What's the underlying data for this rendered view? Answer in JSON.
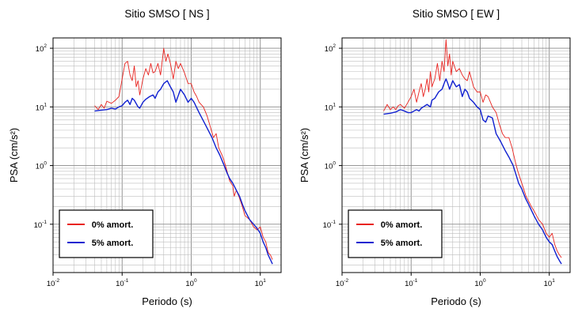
{
  "chart_data": [
    {
      "type": "line",
      "title": "Sitio SMSO [ NS ]",
      "xlabel": "Periodo (s)",
      "ylabel": "PSA (cm/s²)",
      "xscale": "log",
      "yscale": "log",
      "xlim": [
        0.01,
        20
      ],
      "ylim": [
        0.015,
        150
      ],
      "grid": true,
      "legend_position": "bottom-left",
      "x_ticks": [
        {
          "base": "10",
          "exp": "-2",
          "value": 0.01
        },
        {
          "base": "10",
          "exp": "-1",
          "value": 0.1
        },
        {
          "base": "10",
          "exp": "0",
          "value": 1
        },
        {
          "base": "10",
          "exp": "1",
          "value": 10
        }
      ],
      "y_ticks": [
        {
          "base": "10",
          "exp": "-1",
          "value": 0.1
        },
        {
          "base": "10",
          "exp": "0",
          "value": 1
        },
        {
          "base": "10",
          "exp": "1",
          "value": 10
        },
        {
          "base": "10",
          "exp": "2",
          "value": 100
        }
      ],
      "series": [
        {
          "name": "0% amort.",
          "color": "#e8231f",
          "points": [
            [
              0.04,
              10.5
            ],
            [
              0.045,
              9.0
            ],
            [
              0.05,
              11.0
            ],
            [
              0.055,
              9.5
            ],
            [
              0.06,
              12.5
            ],
            [
              0.07,
              11.5
            ],
            [
              0.08,
              13.0
            ],
            [
              0.09,
              15.0
            ],
            [
              0.1,
              30.0
            ],
            [
              0.11,
              55.0
            ],
            [
              0.12,
              60.0
            ],
            [
              0.13,
              35.0
            ],
            [
              0.14,
              28.0
            ],
            [
              0.15,
              50.0
            ],
            [
              0.16,
              22.0
            ],
            [
              0.17,
              28.0
            ],
            [
              0.18,
              16.0
            ],
            [
              0.2,
              30.0
            ],
            [
              0.22,
              45.0
            ],
            [
              0.24,
              35.0
            ],
            [
              0.26,
              55.0
            ],
            [
              0.28,
              38.0
            ],
            [
              0.3,
              40.0
            ],
            [
              0.33,
              55.0
            ],
            [
              0.36,
              35.0
            ],
            [
              0.4,
              100.0
            ],
            [
              0.43,
              60.0
            ],
            [
              0.46,
              80.0
            ],
            [
              0.5,
              55.0
            ],
            [
              0.55,
              30.0
            ],
            [
              0.6,
              60.0
            ],
            [
              0.65,
              45.0
            ],
            [
              0.7,
              55.0
            ],
            [
              0.8,
              38.0
            ],
            [
              0.9,
              25.0
            ],
            [
              1.0,
              25.0
            ],
            [
              1.1,
              18.0
            ],
            [
              1.2,
              15.0
            ],
            [
              1.3,
              12.0
            ],
            [
              1.5,
              10.0
            ],
            [
              1.7,
              7.0
            ],
            [
              1.9,
              4.5
            ],
            [
              2.1,
              3.0
            ],
            [
              2.3,
              3.5
            ],
            [
              2.5,
              2.0
            ],
            [
              2.8,
              1.5
            ],
            [
              3.0,
              1.2
            ],
            [
              3.3,
              0.8
            ],
            [
              3.6,
              0.55
            ],
            [
              4.0,
              0.45
            ],
            [
              4.2,
              0.3
            ],
            [
              4.5,
              0.38
            ],
            [
              5.0,
              0.28
            ],
            [
              5.5,
              0.2
            ],
            [
              6.0,
              0.14
            ],
            [
              7.0,
              0.12
            ],
            [
              8.0,
              0.09
            ],
            [
              9.0,
              0.08
            ],
            [
              10.0,
              0.09
            ],
            [
              11.0,
              0.06
            ],
            [
              12.0,
              0.05
            ],
            [
              13.0,
              0.033
            ],
            [
              14.0,
              0.03
            ],
            [
              15.0,
              0.025
            ]
          ]
        },
        {
          "name": "5% amort.",
          "color": "#1020d0",
          "points": [
            [
              0.04,
              8.5
            ],
            [
              0.05,
              8.8
            ],
            [
              0.06,
              9.0
            ],
            [
              0.07,
              9.5
            ],
            [
              0.08,
              9.2
            ],
            [
              0.09,
              10.0
            ],
            [
              0.1,
              10.5
            ],
            [
              0.11,
              12.0
            ],
            [
              0.12,
              13.0
            ],
            [
              0.13,
              11.0
            ],
            [
              0.14,
              14.0
            ],
            [
              0.15,
              13.0
            ],
            [
              0.17,
              10.0
            ],
            [
              0.18,
              9.5
            ],
            [
              0.2,
              12.0
            ],
            [
              0.22,
              13.5
            ],
            [
              0.25,
              15.0
            ],
            [
              0.28,
              16.0
            ],
            [
              0.3,
              14.0
            ],
            [
              0.33,
              18.0
            ],
            [
              0.36,
              20.0
            ],
            [
              0.4,
              25.0
            ],
            [
              0.45,
              28.0
            ],
            [
              0.5,
              22.0
            ],
            [
              0.55,
              18.0
            ],
            [
              0.6,
              12.0
            ],
            [
              0.7,
              20.0
            ],
            [
              0.8,
              16.0
            ],
            [
              0.9,
              12.0
            ],
            [
              1.0,
              14.0
            ],
            [
              1.1,
              12.0
            ],
            [
              1.3,
              8.0
            ],
            [
              1.6,
              5.0
            ],
            [
              2.0,
              3.0
            ],
            [
              2.3,
              2.0
            ],
            [
              2.6,
              1.5
            ],
            [
              3.0,
              1.0
            ],
            [
              3.3,
              0.75
            ],
            [
              3.6,
              0.6
            ],
            [
              4.0,
              0.5
            ],
            [
              4.5,
              0.38
            ],
            [
              5.0,
              0.3
            ],
            [
              5.5,
              0.22
            ],
            [
              6.0,
              0.17
            ],
            [
              7.0,
              0.12
            ],
            [
              8.0,
              0.1
            ],
            [
              9.0,
              0.085
            ],
            [
              10.0,
              0.07
            ],
            [
              11.0,
              0.05
            ],
            [
              12.0,
              0.04
            ],
            [
              13.0,
              0.03
            ],
            [
              14.0,
              0.025
            ],
            [
              15.0,
              0.021
            ]
          ]
        }
      ]
    },
    {
      "type": "line",
      "title": "Sitio SMSO [ EW ]",
      "xlabel": "Periodo (s)",
      "ylabel": "PSA (cm/s²)",
      "xscale": "log",
      "yscale": "log",
      "xlim": [
        0.01,
        20
      ],
      "ylim": [
        0.015,
        150
      ],
      "grid": true,
      "legend_position": "bottom-left",
      "x_ticks": [
        {
          "base": "10",
          "exp": "-2",
          "value": 0.01
        },
        {
          "base": "10",
          "exp": "-1",
          "value": 0.1
        },
        {
          "base": "10",
          "exp": "0",
          "value": 1
        },
        {
          "base": "10",
          "exp": "1",
          "value": 10
        }
      ],
      "y_ticks": [
        {
          "base": "10",
          "exp": "-1",
          "value": 0.1
        },
        {
          "base": "10",
          "exp": "0",
          "value": 1
        },
        {
          "base": "10",
          "exp": "1",
          "value": 10
        },
        {
          "base": "10",
          "exp": "2",
          "value": 100
        }
      ],
      "series": [
        {
          "name": "0% amort.",
          "color": "#e8231f",
          "points": [
            [
              0.04,
              8.5
            ],
            [
              0.045,
              11.0
            ],
            [
              0.05,
              9.0
            ],
            [
              0.055,
              10.0
            ],
            [
              0.06,
              9.0
            ],
            [
              0.065,
              10.5
            ],
            [
              0.07,
              11.0
            ],
            [
              0.08,
              9.5
            ],
            [
              0.09,
              12.0
            ],
            [
              0.1,
              15.0
            ],
            [
              0.11,
              20.0
            ],
            [
              0.12,
              12.0
            ],
            [
              0.13,
              18.0
            ],
            [
              0.14,
              25.0
            ],
            [
              0.15,
              15.0
            ],
            [
              0.16,
              20.0
            ],
            [
              0.17,
              30.0
            ],
            [
              0.18,
              18.0
            ],
            [
              0.19,
              40.0
            ],
            [
              0.2,
              22.0
            ],
            [
              0.22,
              30.0
            ],
            [
              0.24,
              55.0
            ],
            [
              0.26,
              28.0
            ],
            [
              0.28,
              60.0
            ],
            [
              0.3,
              40.0
            ],
            [
              0.32,
              140.0
            ],
            [
              0.34,
              50.0
            ],
            [
              0.36,
              80.0
            ],
            [
              0.38,
              35.0
            ],
            [
              0.4,
              60.0
            ],
            [
              0.45,
              40.0
            ],
            [
              0.5,
              45.0
            ],
            [
              0.55,
              35.0
            ],
            [
              0.6,
              30.0
            ],
            [
              0.65,
              28.0
            ],
            [
              0.7,
              40.0
            ],
            [
              0.8,
              22.0
            ],
            [
              0.9,
              18.0
            ],
            [
              1.0,
              18.0
            ],
            [
              1.1,
              12.0
            ],
            [
              1.2,
              16.0
            ],
            [
              1.3,
              15.0
            ],
            [
              1.5,
              10.0
            ],
            [
              1.7,
              8.0
            ],
            [
              1.9,
              5.0
            ],
            [
              2.1,
              3.5
            ],
            [
              2.3,
              3.0
            ],
            [
              2.6,
              3.0
            ],
            [
              2.9,
              2.0
            ],
            [
              3.2,
              1.2
            ],
            [
              3.5,
              0.8
            ],
            [
              3.8,
              0.6
            ],
            [
              4.2,
              0.42
            ],
            [
              4.6,
              0.3
            ],
            [
              5.0,
              0.25
            ],
            [
              5.5,
              0.2
            ],
            [
              6.0,
              0.17
            ],
            [
              7.0,
              0.12
            ],
            [
              8.0,
              0.1
            ],
            [
              9.0,
              0.07
            ],
            [
              10.0,
              0.06
            ],
            [
              11.0,
              0.07
            ],
            [
              12.0,
              0.045
            ],
            [
              13.0,
              0.035
            ],
            [
              14.0,
              0.03
            ],
            [
              15.0,
              0.027
            ]
          ]
        },
        {
          "name": "5% amort.",
          "color": "#1020d0",
          "points": [
            [
              0.04,
              7.5
            ],
            [
              0.05,
              7.8
            ],
            [
              0.06,
              8.2
            ],
            [
              0.07,
              9.0
            ],
            [
              0.08,
              8.5
            ],
            [
              0.09,
              8.0
            ],
            [
              0.1,
              8.0
            ],
            [
              0.11,
              8.5
            ],
            [
              0.12,
              9.0
            ],
            [
              0.13,
              8.5
            ],
            [
              0.14,
              9.5
            ],
            [
              0.15,
              10.0
            ],
            [
              0.17,
              11.0
            ],
            [
              0.19,
              10.0
            ],
            [
              0.2,
              13.0
            ],
            [
              0.22,
              14.0
            ],
            [
              0.25,
              18.0
            ],
            [
              0.28,
              20.0
            ],
            [
              0.3,
              25.0
            ],
            [
              0.32,
              30.0
            ],
            [
              0.34,
              25.0
            ],
            [
              0.36,
              20.0
            ],
            [
              0.4,
              28.0
            ],
            [
              0.45,
              22.0
            ],
            [
              0.5,
              24.0
            ],
            [
              0.55,
              15.0
            ],
            [
              0.6,
              20.0
            ],
            [
              0.65,
              18.0
            ],
            [
              0.7,
              14.0
            ],
            [
              0.8,
              12.0
            ],
            [
              0.9,
              10.0
            ],
            [
              1.0,
              9.0
            ],
            [
              1.1,
              6.0
            ],
            [
              1.2,
              5.5
            ],
            [
              1.3,
              7.0
            ],
            [
              1.5,
              6.5
            ],
            [
              1.7,
              3.5
            ],
            [
              2.0,
              2.5
            ],
            [
              2.3,
              1.8
            ],
            [
              2.6,
              1.4
            ],
            [
              3.0,
              1.0
            ],
            [
              3.3,
              0.7
            ],
            [
              3.6,
              0.5
            ],
            [
              4.0,
              0.4
            ],
            [
              4.5,
              0.28
            ],
            [
              5.0,
              0.22
            ],
            [
              6.0,
              0.14
            ],
            [
              7.0,
              0.1
            ],
            [
              8.0,
              0.08
            ],
            [
              9.0,
              0.06
            ],
            [
              10.0,
              0.05
            ],
            [
              11.0,
              0.045
            ],
            [
              12.0,
              0.035
            ],
            [
              13.0,
              0.028
            ],
            [
              14.0,
              0.024
            ],
            [
              15.0,
              0.021
            ]
          ]
        }
      ]
    }
  ]
}
